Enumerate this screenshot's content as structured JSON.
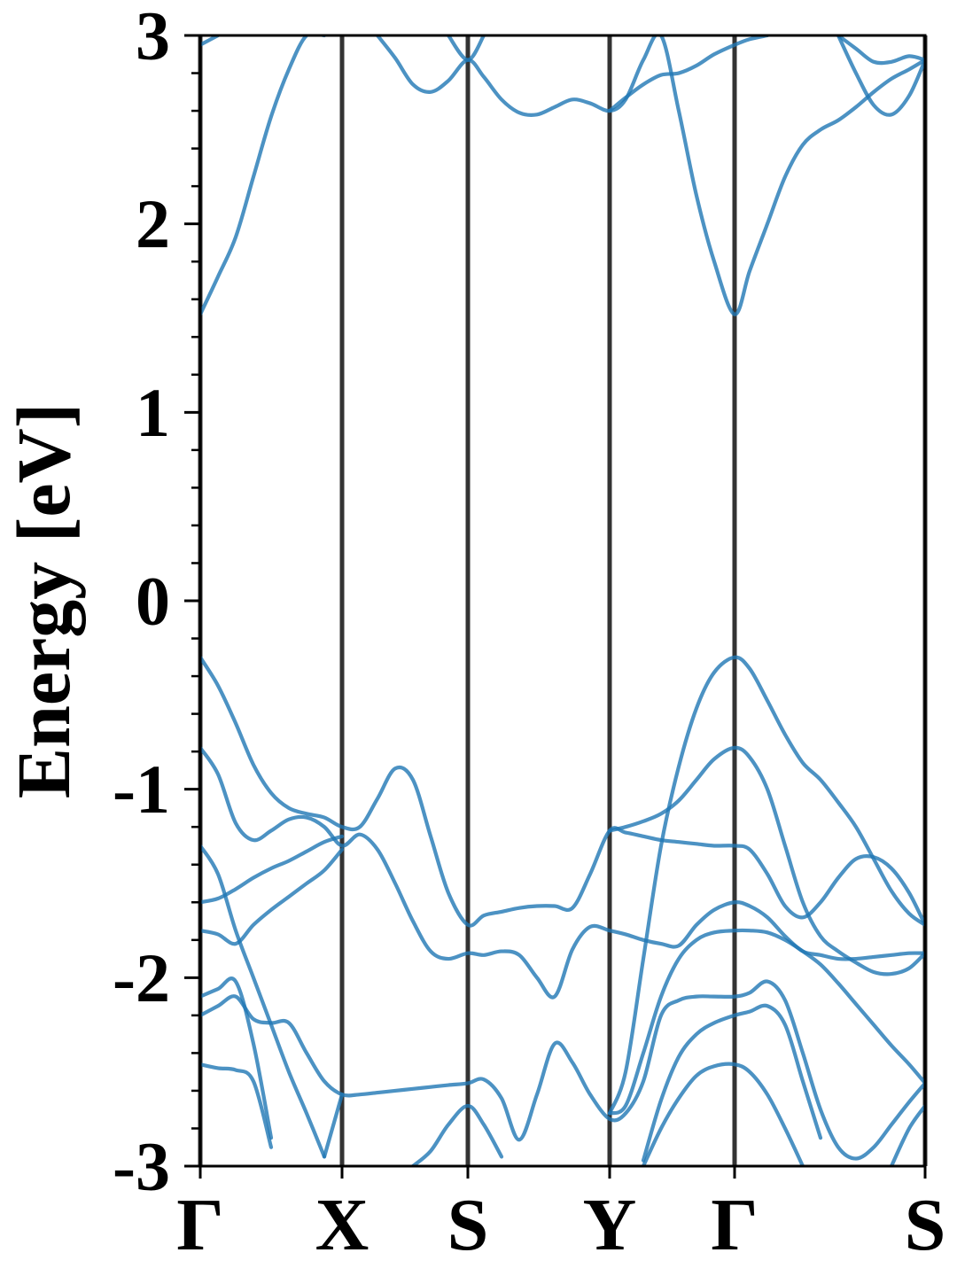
{
  "chart_data": {
    "type": "line",
    "y_label": "Energy [eV]",
    "ylim": [
      -3,
      3
    ],
    "yticks": [
      -3,
      -2,
      -1,
      0,
      1,
      2,
      3
    ],
    "yminorticks": [
      -2.8,
      -2.6,
      -2.4,
      -2.2,
      -1.8,
      -1.6,
      -1.4,
      -1.2,
      -0.8,
      -0.6,
      -0.4,
      -0.2,
      0.2,
      0.4,
      0.6,
      0.8,
      1.2,
      1.4,
      1.6,
      1.8,
      2.2,
      2.4,
      2.6,
      2.8
    ],
    "xlim": [
      0,
      8.18
    ],
    "xticks": [
      {
        "value": 0,
        "label": "Γ"
      },
      {
        "value": 1.6,
        "label": "X"
      },
      {
        "value": 3.02,
        "label": "S"
      },
      {
        "value": 4.62,
        "label": "Y"
      },
      {
        "value": 6.03,
        "label": "Γ"
      },
      {
        "value": 8.18,
        "label": "S"
      }
    ],
    "line_color": "#1f77b4",
    "vline_color": "#333333",
    "x": [
      0,
      0.2,
      0.4,
      0.6,
      0.8,
      1.0,
      1.2,
      1.4,
      1.6,
      1.8,
      2.0,
      2.2,
      2.4,
      2.6,
      2.8,
      3.02,
      3.2,
      3.4,
      3.6,
      3.8,
      4.0,
      4.2,
      4.4,
      4.62,
      4.8,
      5.0,
      5.2,
      5.4,
      5.6,
      5.8,
      6.03,
      6.2,
      6.4,
      6.6,
      6.8,
      7.0,
      7.2,
      7.4,
      7.6,
      7.8,
      8.0,
      8.18
    ],
    "series": [
      {
        "color": "#1f77b4",
        "values": [
          -0.3,
          -0.45,
          -0.65,
          -0.87,
          -1.02,
          -1.1,
          -1.13,
          -1.15,
          -1.2,
          -1.2,
          -1.05,
          -0.89,
          -0.95,
          -1.25,
          -1.55,
          -1.72,
          -1.67,
          -1.65,
          -1.63,
          -1.62,
          -1.62,
          -1.63,
          -1.45,
          -1.22,
          -1.23,
          -1.25,
          -1.27,
          -1.28,
          -1.29,
          -1.3,
          -1.3,
          -1.32,
          -1.45,
          -1.62,
          -1.68,
          -1.6,
          -1.47,
          -1.37,
          -1.36,
          -1.42,
          -1.55,
          -1.72
        ]
      },
      {
        "color": "#1f77b4",
        "values": [
          -0.78,
          -0.92,
          -1.18,
          -1.27,
          -1.22,
          -1.16,
          -1.15,
          -1.2,
          -1.3,
          -1.24,
          -1.32,
          -1.5,
          -1.7,
          -1.86,
          -1.9,
          -1.87,
          -1.88,
          -1.86,
          -1.88,
          -2.0,
          -2.1,
          -1.85,
          -1.73,
          -1.75,
          -1.77,
          -1.8,
          -1.82,
          -1.83,
          -1.72,
          -1.64,
          -1.6,
          -1.62,
          -1.68,
          -1.78,
          -1.86,
          -1.88,
          -1.9,
          -1.9,
          -1.89,
          -1.88,
          -1.87,
          -1.87
        ]
      },
      {
        "color": "#1f77b4",
        "values": [
          -1.6,
          -1.58,
          -1.53,
          -1.47,
          -1.42,
          -1.38,
          -1.33,
          -1.28,
          -1.25,
          null,
          null,
          null,
          null,
          null,
          null,
          null,
          null,
          null,
          null,
          null,
          null,
          null,
          null,
          -1.22,
          -1.2,
          -1.17,
          -1.13,
          -1.06,
          -0.95,
          -0.84,
          -0.78,
          -0.83,
          -1.0,
          -1.3,
          -1.6,
          -1.78,
          -1.86,
          -1.92,
          -1.97,
          -1.98,
          -1.95,
          -1.87
        ]
      },
      {
        "color": "#1f77b4",
        "values": [
          -1.75,
          -1.77,
          -1.82,
          -1.72,
          -1.64,
          -1.57,
          -1.5,
          -1.43,
          -1.32,
          null,
          null,
          null,
          null,
          null,
          null,
          null,
          null,
          null,
          null,
          null,
          null,
          null,
          null,
          -2.72,
          -2.5,
          -1.9,
          -1.3,
          -0.88,
          -0.57,
          -0.38,
          -0.3,
          -0.36,
          -0.53,
          -0.71,
          -0.86,
          -0.95,
          -1.07,
          -1.2,
          -1.37,
          -1.54,
          -1.66,
          -1.72
        ]
      },
      {
        "color": "#1f77b4",
        "values": [
          -1.3,
          -1.45,
          -1.75,
          -2.0,
          -2.25,
          -2.5,
          -2.72,
          -2.95,
          null,
          null,
          null,
          null,
          null,
          null,
          null,
          null,
          null,
          null,
          null,
          null,
          null,
          null,
          null,
          -2.72,
          -2.68,
          -2.4,
          -2.1,
          -1.9,
          -1.8,
          -1.76,
          -1.75,
          -1.75,
          -1.76,
          -1.8,
          -1.86,
          -1.93,
          -2.03,
          -2.14,
          -2.25,
          -2.36,
          -2.46,
          -2.56
        ]
      },
      {
        "color": "#1f77b4",
        "values": [
          -2.1,
          -2.06,
          -2.02,
          -2.35,
          -2.85,
          null,
          null,
          null,
          null,
          null,
          null,
          null,
          null,
          null,
          null,
          null,
          null,
          null,
          null,
          null,
          null,
          null,
          null,
          null,
          null,
          -2.97,
          -2.65,
          -2.42,
          -2.3,
          -2.24,
          -2.2,
          -2.18,
          -2.15,
          -2.25,
          -2.55,
          -2.85,
          null,
          null,
          null,
          null,
          null,
          null
        ]
      },
      {
        "color": "#1f77b4",
        "values": [
          -2.2,
          -2.15,
          -2.1,
          -2.22,
          -2.24,
          -2.24,
          -2.4,
          -2.55,
          -2.62,
          -2.62,
          -2.61,
          -2.6,
          -2.59,
          -2.58,
          -2.57,
          -2.56,
          -2.54,
          -2.64,
          -2.86,
          -2.62,
          -2.35,
          -2.45,
          -2.62,
          -2.75,
          -2.72,
          -2.55,
          -2.2,
          -2.12,
          -2.1,
          -2.1,
          -2.1,
          -2.08,
          -2.02,
          -2.12,
          -2.4,
          -2.7,
          -2.9,
          -2.96,
          -2.9,
          -2.78,
          -2.66,
          -2.56
        ]
      },
      {
        "color": "#1f77b4",
        "values": [
          -2.46,
          -2.48,
          -2.49,
          -2.55,
          -2.9,
          null,
          null,
          null,
          null,
          null,
          null,
          null,
          null,
          null,
          null,
          null,
          null,
          null,
          null,
          null,
          null,
          null,
          null,
          null,
          null,
          -3.0,
          -2.8,
          -2.64,
          -2.52,
          -2.47,
          -2.46,
          -2.5,
          -2.62,
          -2.8,
          -3.0,
          null,
          null,
          null,
          null,
          null,
          null,
          null
        ]
      },
      {
        "color": "#1f77b4",
        "values": [
          null,
          null,
          null,
          null,
          null,
          null,
          null,
          -2.95,
          -2.62,
          null,
          null,
          null,
          -3.0,
          -2.92,
          -2.78,
          -2.68,
          -2.78,
          -2.95,
          null,
          null,
          null,
          null,
          null,
          null,
          null,
          null,
          null,
          null,
          null,
          null,
          null,
          null,
          null,
          null,
          null,
          null,
          null,
          null,
          null,
          -3.0,
          -2.8,
          -2.68
        ]
      },
      {
        "color": "#1f77b4",
        "values": [
          1.52,
          1.72,
          1.93,
          2.25,
          2.57,
          2.82,
          3.0,
          3.0,
          null,
          null,
          3.0,
          2.88,
          2.74,
          2.7,
          2.76,
          2.87,
          2.78,
          2.66,
          2.59,
          2.58,
          2.62,
          2.66,
          2.64,
          2.6,
          2.66,
          2.87,
          3.0,
          2.6,
          2.15,
          1.8,
          1.52,
          1.75,
          2.0,
          2.25,
          2.42,
          2.5,
          2.55,
          2.62,
          2.7,
          2.77,
          2.82,
          2.87
        ]
      },
      {
        "color": "#1f77b4",
        "values": [
          2.95,
          3.0,
          null,
          null,
          null,
          null,
          null,
          null,
          null,
          null,
          null,
          null,
          null,
          null,
          3.0,
          2.87,
          3.0,
          null,
          null,
          null,
          null,
          null,
          null,
          2.6,
          2.67,
          2.74,
          2.79,
          2.8,
          2.84,
          2.9,
          2.95,
          2.98,
          3.0,
          null,
          null,
          null,
          3.0,
          2.93,
          2.86,
          2.86,
          2.89,
          2.87
        ]
      },
      {
        "color": "#1f77b4",
        "values": [
          null,
          null,
          null,
          null,
          null,
          null,
          null,
          null,
          null,
          null,
          null,
          null,
          null,
          null,
          null,
          null,
          null,
          null,
          null,
          null,
          null,
          null,
          null,
          null,
          null,
          null,
          null,
          null,
          null,
          null,
          null,
          null,
          null,
          null,
          null,
          null,
          3.0,
          2.8,
          2.63,
          2.58,
          2.68,
          2.87
        ]
      }
    ]
  }
}
